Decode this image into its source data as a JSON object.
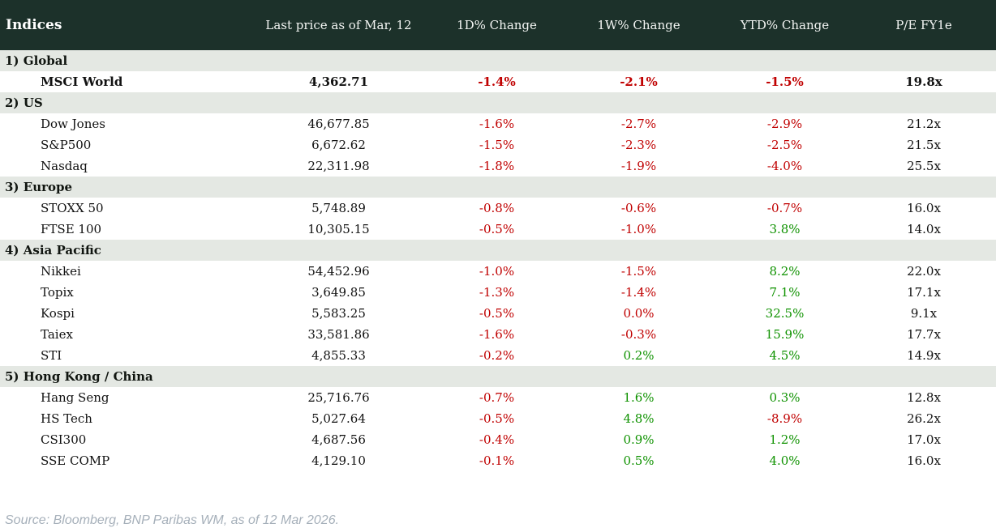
{
  "colors": {
    "header_bg": "#1c312a",
    "section_bg": "#e4e8e3",
    "negative": "#c00000",
    "positive": "#0f9200",
    "source_text": "#a6b0ba"
  },
  "header": {
    "columns": [
      "Indices",
      "Last price as of Mar, 12",
      "1D% Change",
      "1W% Change",
      "YTD% Change",
      "P/E FY1e"
    ]
  },
  "sections": [
    {
      "label": "1) Global",
      "rows": [
        {
          "name": "MSCI World",
          "price": "4,362.71",
          "d1": {
            "v": "-1.4%",
            "t": "neg"
          },
          "w1": {
            "v": "-2.1%",
            "t": "neg"
          },
          "ytd": {
            "v": "-1.5%",
            "t": "neg"
          },
          "pe": "19.8x",
          "emphasis": true
        }
      ]
    },
    {
      "label": "2) US",
      "rows": [
        {
          "name": "Dow Jones",
          "price": "46,677.85",
          "d1": {
            "v": "-1.6%",
            "t": "neg"
          },
          "w1": {
            "v": "-2.7%",
            "t": "neg"
          },
          "ytd": {
            "v": "-2.9%",
            "t": "neg"
          },
          "pe": "21.2x",
          "emphasis": false
        },
        {
          "name": "S&P500",
          "price": "6,672.62",
          "d1": {
            "v": "-1.5%",
            "t": "neg"
          },
          "w1": {
            "v": "-2.3%",
            "t": "neg"
          },
          "ytd": {
            "v": "-2.5%",
            "t": "neg"
          },
          "pe": "21.5x",
          "emphasis": false
        },
        {
          "name": "Nasdaq",
          "price": "22,311.98",
          "d1": {
            "v": "-1.8%",
            "t": "neg"
          },
          "w1": {
            "v": "-1.9%",
            "t": "neg"
          },
          "ytd": {
            "v": "-4.0%",
            "t": "neg"
          },
          "pe": "25.5x",
          "emphasis": false
        }
      ]
    },
    {
      "label": "3) Europe",
      "rows": [
        {
          "name": "STOXX 50",
          "price": "5,748.89",
          "d1": {
            "v": "-0.8%",
            "t": "neg"
          },
          "w1": {
            "v": "-0.6%",
            "t": "neg"
          },
          "ytd": {
            "v": "-0.7%",
            "t": "neg"
          },
          "pe": "16.0x",
          "emphasis": false
        },
        {
          "name": "FTSE 100",
          "price": "10,305.15",
          "d1": {
            "v": "-0.5%",
            "t": "neg"
          },
          "w1": {
            "v": "-1.0%",
            "t": "neg"
          },
          "ytd": {
            "v": "3.8%",
            "t": "pos"
          },
          "pe": "14.0x",
          "emphasis": false
        }
      ]
    },
    {
      "label": "4) Asia Pacific",
      "rows": [
        {
          "name": "Nikkei",
          "price": "54,452.96",
          "d1": {
            "v": "-1.0%",
            "t": "neg"
          },
          "w1": {
            "v": "-1.5%",
            "t": "neg"
          },
          "ytd": {
            "v": "8.2%",
            "t": "pos"
          },
          "pe": "22.0x",
          "emphasis": false
        },
        {
          "name": "Topix",
          "price": "3,649.85",
          "d1": {
            "v": "-1.3%",
            "t": "neg"
          },
          "w1": {
            "v": "-1.4%",
            "t": "neg"
          },
          "ytd": {
            "v": "7.1%",
            "t": "pos"
          },
          "pe": "17.1x",
          "emphasis": false
        },
        {
          "name": "Kospi",
          "price": "5,583.25",
          "d1": {
            "v": "-0.5%",
            "t": "neg"
          },
          "w1": {
            "v": "0.0%",
            "t": "neg"
          },
          "ytd": {
            "v": "32.5%",
            "t": "pos"
          },
          "pe": "9.1x",
          "emphasis": false
        },
        {
          "name": "Taiex",
          "price": "33,581.86",
          "d1": {
            "v": "-1.6%",
            "t": "neg"
          },
          "w1": {
            "v": "-0.3%",
            "t": "neg"
          },
          "ytd": {
            "v": "15.9%",
            "t": "pos"
          },
          "pe": "17.7x",
          "emphasis": false
        },
        {
          "name": "STI",
          "price": "4,855.33",
          "d1": {
            "v": "-0.2%",
            "t": "neg"
          },
          "w1": {
            "v": "0.2%",
            "t": "pos"
          },
          "ytd": {
            "v": "4.5%",
            "t": "pos"
          },
          "pe": "14.9x",
          "emphasis": false
        }
      ]
    },
    {
      "label": "5) Hong Kong / China",
      "rows": [
        {
          "name": "Hang Seng",
          "price": "25,716.76",
          "d1": {
            "v": "-0.7%",
            "t": "neg"
          },
          "w1": {
            "v": "1.6%",
            "t": "pos"
          },
          "ytd": {
            "v": "0.3%",
            "t": "pos"
          },
          "pe": "12.8x",
          "emphasis": false
        },
        {
          "name": "HS Tech",
          "price": "5,027.64",
          "d1": {
            "v": "-0.5%",
            "t": "neg"
          },
          "w1": {
            "v": "4.8%",
            "t": "pos"
          },
          "ytd": {
            "v": "-8.9%",
            "t": "neg"
          },
          "pe": "26.2x",
          "emphasis": false
        },
        {
          "name": "CSI300",
          "price": "4,687.56",
          "d1": {
            "v": "-0.4%",
            "t": "neg"
          },
          "w1": {
            "v": "0.9%",
            "t": "pos"
          },
          "ytd": {
            "v": "1.2%",
            "t": "pos"
          },
          "pe": "17.0x",
          "emphasis": false
        },
        {
          "name": "SSE COMP",
          "price": "4,129.10",
          "d1": {
            "v": "-0.1%",
            "t": "neg"
          },
          "w1": {
            "v": "0.5%",
            "t": "pos"
          },
          "ytd": {
            "v": "4.0%",
            "t": "pos"
          },
          "pe": "16.0x",
          "emphasis": false
        }
      ]
    }
  ],
  "footer": {
    "source": "Source: Bloomberg, BNP Paribas WM, as of 12 Mar 2026."
  },
  "chart_data": {
    "type": "table",
    "title": "Indices",
    "columns": [
      "Indices",
      "Last price as of Mar, 12",
      "1D% Change",
      "1W% Change",
      "YTD% Change",
      "P/E FY1e"
    ],
    "rows": [
      [
        "1) Global",
        "",
        "",
        "",
        "",
        ""
      ],
      [
        "MSCI World",
        "4,362.71",
        "-1.4%",
        "-2.1%",
        "-1.5%",
        "19.8x"
      ],
      [
        "2) US",
        "",
        "",
        "",
        "",
        ""
      ],
      [
        "Dow Jones",
        "46,677.85",
        "-1.6%",
        "-2.7%",
        "-2.9%",
        "21.2x"
      ],
      [
        "S&P500",
        "6,672.62",
        "-1.5%",
        "-2.3%",
        "-2.5%",
        "21.5x"
      ],
      [
        "Nasdaq",
        "22,311.98",
        "-1.8%",
        "-1.9%",
        "-4.0%",
        "25.5x"
      ],
      [
        "3) Europe",
        "",
        "",
        "",
        "",
        ""
      ],
      [
        "STOXX 50",
        "5,748.89",
        "-0.8%",
        "-0.6%",
        "-0.7%",
        "16.0x"
      ],
      [
        "FTSE 100",
        "10,305.15",
        "-0.5%",
        "-1.0%",
        "3.8%",
        "14.0x"
      ],
      [
        "4) Asia Pacific",
        "",
        "",
        "",
        "",
        ""
      ],
      [
        "Nikkei",
        "54,452.96",
        "-1.0%",
        "-1.5%",
        "8.2%",
        "22.0x"
      ],
      [
        "Topix",
        "3,649.85",
        "-1.3%",
        "-1.4%",
        "7.1%",
        "17.1x"
      ],
      [
        "Kospi",
        "5,583.25",
        "-0.5%",
        "0.0%",
        "32.5%",
        "9.1x"
      ],
      [
        "Taiex",
        "33,581.86",
        "-1.6%",
        "-0.3%",
        "15.9%",
        "17.7x"
      ],
      [
        "STI",
        "4,855.33",
        "-0.2%",
        "0.2%",
        "4.5%",
        "14.9x"
      ],
      [
        "5) Hong Kong / China",
        "",
        "",
        "",
        "",
        ""
      ],
      [
        "Hang Seng",
        "25,716.76",
        "-0.7%",
        "1.6%",
        "0.3%",
        "12.8x"
      ],
      [
        "HS Tech",
        "5,027.64",
        "-0.5%",
        "4.8%",
        "-8.9%",
        "26.2x"
      ],
      [
        "CSI300",
        "4,687.56",
        "-0.4%",
        "0.9%",
        "1.2%",
        "17.0x"
      ],
      [
        "SSE COMP",
        "4,129.10",
        "-0.1%",
        "0.5%",
        "4.0%",
        "16.0x"
      ]
    ]
  }
}
